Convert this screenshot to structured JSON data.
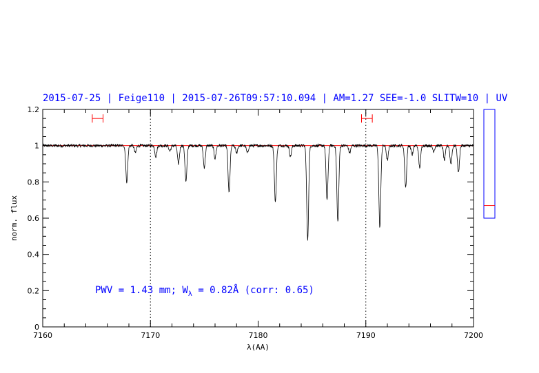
{
  "header": {
    "title": "2015-07-25 | Feige110 | 2015-07-26T09:57:10.094 | AM=1.27 SEE=-1.0 SLITW=10 | UV"
  },
  "annotation": {
    "pwv_prefix": "PWV = 1.43 mm; W",
    "w_subscript": "λ",
    "w_value": " = 0.82Å (corr: 0.65)"
  },
  "chart_data": {
    "type": "line",
    "title": "2015-07-25 | Feige110 | 2015-07-26T09:57:10.094 | AM=1.27 SEE=-1.0 SLITW=10 | UV",
    "xlabel": "λ(AA)",
    "ylabel": "norm. flux",
    "xlim": [
      7160,
      7200
    ],
    "ylim": [
      0,
      1.2
    ],
    "x_ticks": [
      7160,
      7170,
      7180,
      7190,
      7200
    ],
    "x_tick_labels": [
      "7160",
      "7170",
      "7180",
      "7190",
      "7200"
    ],
    "y_ticks": [
      0,
      0.2,
      0.4,
      0.6,
      0.8,
      1,
      1.2
    ],
    "y_tick_labels": [
      "0",
      "0.2",
      "0.4",
      "0.6",
      "0.8",
      "1",
      "1.2"
    ],
    "continuum_level": 1.0,
    "continuum_color": "#ff0000",
    "spectrum_color": "#000000",
    "reference_lines_x": [
      7170,
      7190
    ],
    "intervals": [
      {
        "x_start": 7164.6,
        "x_end": 7165.6,
        "y": 1.15,
        "color": "#ff0000"
      },
      {
        "x_start": 7189.6,
        "x_end": 7190.6,
        "y": 1.15,
        "color": "#ff0000"
      }
    ],
    "absorption_lines": [
      {
        "x": 7167.8,
        "depth": 0.2
      },
      {
        "x": 7168.6,
        "depth": 0.04
      },
      {
        "x": 7170.5,
        "depth": 0.06
      },
      {
        "x": 7171.8,
        "depth": 0.03
      },
      {
        "x": 7172.6,
        "depth": 0.1
      },
      {
        "x": 7173.3,
        "depth": 0.2
      },
      {
        "x": 7175.0,
        "depth": 0.12
      },
      {
        "x": 7176.0,
        "depth": 0.07
      },
      {
        "x": 7177.3,
        "depth": 0.26
      },
      {
        "x": 7178.0,
        "depth": 0.04
      },
      {
        "x": 7179.0,
        "depth": 0.04
      },
      {
        "x": 7181.6,
        "depth": 0.31
      },
      {
        "x": 7183.0,
        "depth": 0.06
      },
      {
        "x": 7184.6,
        "depth": 0.52
      },
      {
        "x": 7186.4,
        "depth": 0.3
      },
      {
        "x": 7187.4,
        "depth": 0.42
      },
      {
        "x": 7188.5,
        "depth": 0.04
      },
      {
        "x": 7191.3,
        "depth": 0.45
      },
      {
        "x": 7192.0,
        "depth": 0.08
      },
      {
        "x": 7193.7,
        "depth": 0.23
      },
      {
        "x": 7194.3,
        "depth": 0.05
      },
      {
        "x": 7195.0,
        "depth": 0.12
      },
      {
        "x": 7196.3,
        "depth": 0.03
      },
      {
        "x": 7197.3,
        "depth": 0.08
      },
      {
        "x": 7197.9,
        "depth": 0.1
      },
      {
        "x": 7198.6,
        "depth": 0.15
      }
    ],
    "noise_amplitude": 0.008
  },
  "side_panel": {
    "frame_color": "#0000ff",
    "marker_color": "#ff0000",
    "marker_level": 0.67,
    "scale": [
      0.6,
      1.2
    ]
  }
}
